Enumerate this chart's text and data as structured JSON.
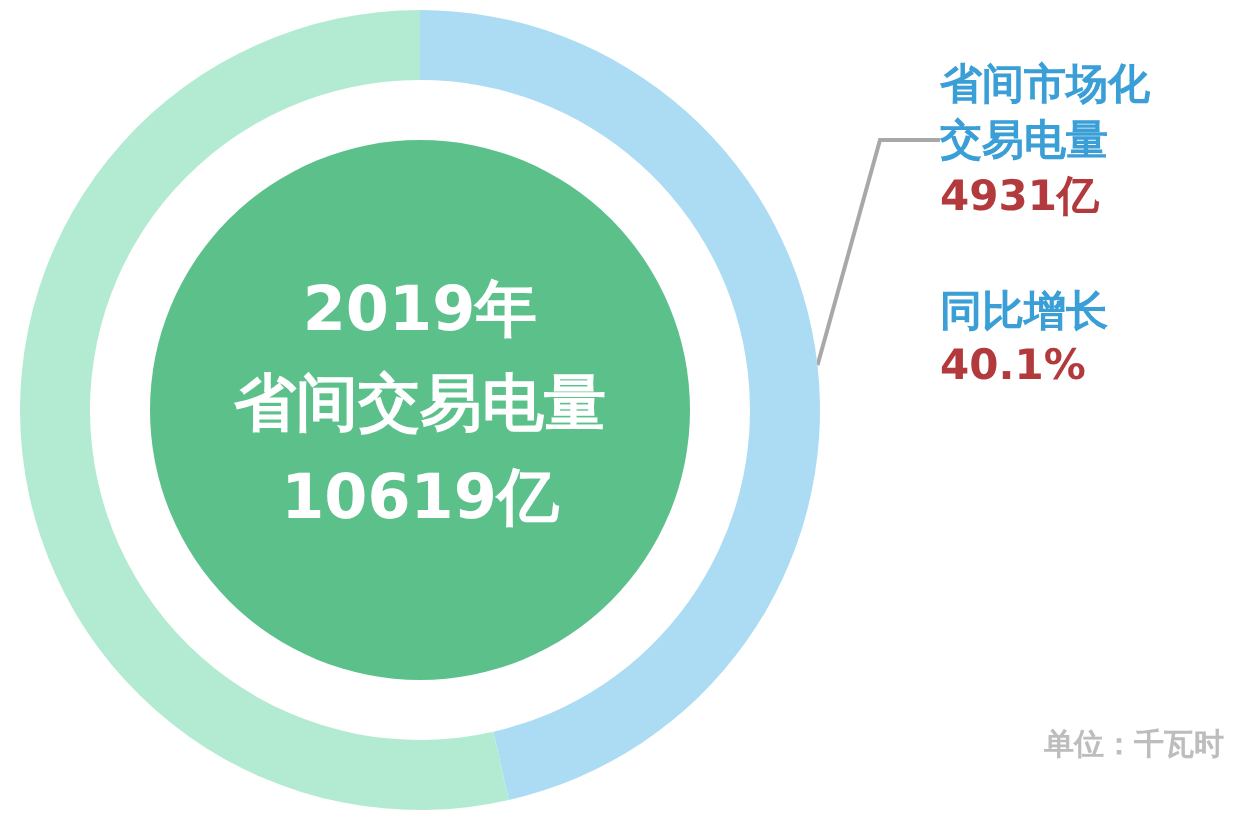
{
  "chart_data": {
    "type": "donut",
    "categories": [
      "省间市场化交易电量",
      null
    ],
    "values": [
      4931,
      5688
    ],
    "colors": [
      "#acdcf3",
      "#b3ebd2"
    ],
    "value_labels": [
      "4931亿",
      null
    ],
    "annotations": [
      "2019年",
      "省间交易电量",
      "10619亿",
      "同比增长",
      "40.1%",
      "单位：千瓦时"
    ]
  }
}
